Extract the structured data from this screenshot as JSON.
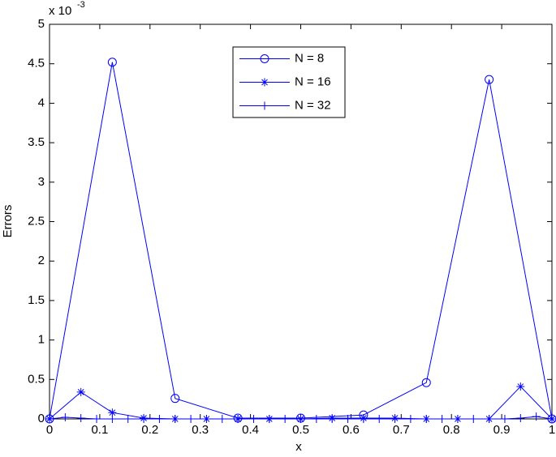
{
  "chart_data": {
    "type": "line",
    "x_label": "x",
    "y_label": "Errors",
    "y_multiplier": {
      "base": "x 10",
      "exponent": "-3"
    },
    "xlim": [
      0,
      1
    ],
    "xticks": [
      0,
      0.1,
      0.2,
      0.3,
      0.4,
      0.5,
      0.6,
      0.7,
      0.8,
      0.9,
      1
    ],
    "ylim": [
      0,
      5
    ],
    "yticks": [
      0,
      0.5,
      1,
      1.5,
      2,
      2.5,
      3,
      3.5,
      4,
      4.5,
      5
    ],
    "legend_position": "top",
    "series": [
      {
        "name": "N = 8",
        "color": "#0000ff",
        "marker": "circle",
        "x": [
          0,
          0.125,
          0.25,
          0.375,
          0.5,
          0.625,
          0.75,
          0.875,
          1
        ],
        "values": [
          0,
          4.52,
          0.26,
          0.01,
          0.01,
          0.05,
          0.46,
          4.3,
          0
        ]
      },
      {
        "name": "N = 16",
        "color": "#0000ff",
        "marker": "star",
        "x": [
          0,
          0.0625,
          0.125,
          0.1875,
          0.25,
          0.3125,
          0.375,
          0.4375,
          0.5,
          0.5625,
          0.625,
          0.6875,
          0.75,
          0.8125,
          0.875,
          0.9375,
          1
        ],
        "values": [
          0,
          0.34,
          0.08,
          0.01,
          0,
          0,
          0,
          0,
          0,
          0.01,
          0.01,
          0.01,
          0,
          0,
          0,
          0.41,
          0
        ]
      },
      {
        "name": "N = 32",
        "color": "#0000ff",
        "marker": "plus",
        "x": [
          0,
          0.03125,
          0.0625,
          0.09375,
          0.125,
          0.15625,
          0.1875,
          0.21875,
          0.25,
          0.28125,
          0.3125,
          0.34375,
          0.375,
          0.40625,
          0.4375,
          0.46875,
          0.5,
          0.53125,
          0.5625,
          0.59375,
          0.625,
          0.65625,
          0.6875,
          0.71875,
          0.75,
          0.78125,
          0.8125,
          0.84375,
          0.875,
          0.90625,
          0.9375,
          0.96875,
          1
        ],
        "values": [
          0,
          0.02,
          0.01,
          0,
          0,
          0,
          0,
          0,
          0,
          0,
          0,
          0,
          0,
          0,
          0,
          0,
          0,
          0,
          0,
          0,
          0,
          0,
          0,
          0,
          0,
          0,
          0,
          0,
          0,
          0,
          0.01,
          0.03,
          0
        ]
      }
    ]
  }
}
